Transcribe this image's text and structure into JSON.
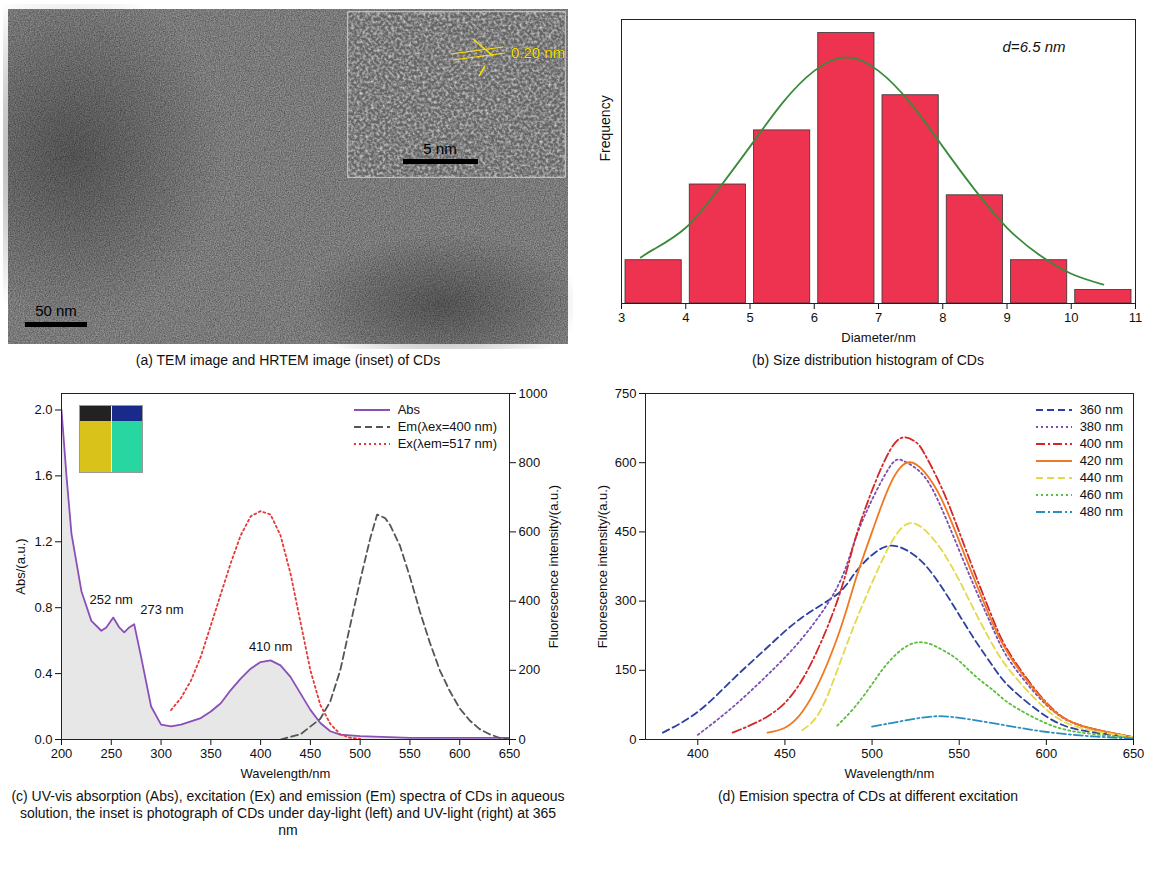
{
  "chart_data": [
    {
      "type": "image",
      "caption": "(a) TEM image and HRTEM image (inset) of CDs",
      "annotations": {
        "scale_bar": "50 nm",
        "inset_scale_bar": "5 nm",
        "lattice_spacing": "0.20 nm"
      }
    },
    {
      "type": "histogram",
      "caption": "(b) Size distribution histogram of CDs",
      "xlabel": "Diameter/nm",
      "ylabel": "Frequency",
      "bins": [
        3,
        4,
        5,
        6,
        7,
        8,
        9,
        10,
        11
      ],
      "values": [
        16,
        44,
        64,
        100,
        77,
        40,
        16,
        5
      ],
      "color": "#ee3350",
      "fit": {
        "color": "#3a8a3a",
        "x": [
          3.3,
          3.5,
          4,
          4.5,
          5,
          5.5,
          6,
          6.5,
          7,
          7.5,
          8,
          8.5,
          9,
          9.5,
          10,
          10.5
        ],
        "values": [
          17,
          20,
          28,
          42,
          58,
          74,
          86,
          91,
          86,
          74,
          58,
          42,
          28,
          18,
          11,
          7
        ]
      },
      "annotations": [
        "d=6.5 nm"
      ],
      "xlim": [
        3,
        11
      ],
      "xticks": [
        3,
        4,
        5,
        6,
        7,
        8,
        9,
        10,
        11
      ],
      "ylim": [
        0,
        105
      ],
      "tick_labels": "x"
    },
    {
      "type": "line",
      "caption": "(c) UV-vis absorption (Abs), excitation (Ex) and emission (Em) spectra of CDs in aqueous solution, the inset is photograph of CDs under day-light (left) and UV-light (right) at 365 nm",
      "xlabel": "Wavelength/nm",
      "ylabel": "Abs/(a.u.)",
      "y2label": "Fluorescence intensity/(a.u.)",
      "xlim": [
        200,
        650
      ],
      "xticks": [
        200,
        250,
        300,
        350,
        400,
        450,
        500,
        550,
        600,
        650
      ],
      "ylim": [
        0,
        2.1
      ],
      "yticks": [
        {
          "value": 0,
          "label": "0.0"
        },
        0.4,
        0.8,
        1.2,
        1.6,
        {
          "value": 2,
          "label": "2.0"
        }
      ],
      "y2lim": [
        0,
        1000
      ],
      "y2ticks": [
        0,
        200,
        400,
        600,
        800,
        1000
      ],
      "legend": "top-right",
      "series": [
        {
          "name": "Abs",
          "color": "#8a4fb8",
          "line_style": "solid",
          "axis": "y",
          "x": [
            200,
            205,
            210,
            220,
            230,
            240,
            245,
            252,
            258,
            263,
            268,
            273,
            280,
            290,
            300,
            310,
            320,
            330,
            340,
            350,
            360,
            370,
            380,
            390,
            400,
            410,
            420,
            430,
            440,
            450,
            460,
            470,
            480,
            500,
            550,
            600,
            650
          ],
          "values": [
            2.0,
            1.6,
            1.25,
            0.9,
            0.72,
            0.66,
            0.68,
            0.74,
            0.68,
            0.65,
            0.68,
            0.7,
            0.5,
            0.2,
            0.09,
            0.08,
            0.09,
            0.11,
            0.13,
            0.17,
            0.22,
            0.3,
            0.37,
            0.43,
            0.47,
            0.48,
            0.45,
            0.38,
            0.28,
            0.18,
            0.1,
            0.05,
            0.03,
            0.02,
            0.01,
            0.01,
            0.01
          ]
        },
        {
          "name": "Em(λex=400 nm)",
          "color": "#555555",
          "line_style": "dashed",
          "axis": "y2",
          "x": [
            420,
            440,
            460,
            470,
            480,
            490,
            500,
            510,
            517,
            525,
            530,
            540,
            550,
            560,
            570,
            580,
            590,
            600,
            610,
            620,
            630,
            640,
            650
          ],
          "values": [
            0,
            15,
            60,
            110,
            200,
            330,
            460,
            580,
            650,
            640,
            620,
            560,
            470,
            370,
            280,
            200,
            140,
            90,
            55,
            30,
            15,
            5,
            0
          ]
        },
        {
          "name": "Ex(λem=517 nm)",
          "color": "#e53935",
          "line_style": "dotted",
          "axis": "y2",
          "x": [
            310,
            320,
            330,
            340,
            350,
            360,
            370,
            380,
            390,
            400,
            410,
            420,
            430,
            440,
            450,
            460,
            470,
            480,
            490,
            500
          ],
          "values": [
            85,
            120,
            170,
            240,
            330,
            420,
            510,
            590,
            645,
            660,
            650,
            590,
            480,
            340,
            200,
            100,
            45,
            15,
            5,
            2
          ]
        }
      ],
      "annotations": [
        {
          "text": "252 nm",
          "x": 252,
          "y": 0.74
        },
        {
          "text": "273 nm",
          "x": 273,
          "y": 0.7
        },
        {
          "text": "410 nm",
          "x": 410,
          "y": 0.48
        }
      ]
    },
    {
      "type": "line",
      "caption": "(d) Emision spectra of CDs at different excitation",
      "xlabel": "Wavelength/nm",
      "ylabel": "Fluorescence intensity/(a.u.)",
      "xlim": [
        370,
        650
      ],
      "xticks": [
        400,
        450,
        500,
        550,
        600,
        650
      ],
      "ylim": [
        0,
        750
      ],
      "yticks": [
        0,
        150,
        300,
        450,
        600,
        750
      ],
      "legend": "top-right",
      "series": [
        {
          "name": "360 nm",
          "color": "#2e3fa0",
          "line_style": "dashed",
          "x": [
            380,
            400,
            420,
            440,
            460,
            480,
            490,
            500,
            510,
            520,
            530,
            540,
            550,
            560,
            570,
            580,
            600,
            620,
            650
          ],
          "values": [
            15,
            60,
            130,
            200,
            265,
            315,
            360,
            400,
            420,
            410,
            380,
            330,
            270,
            210,
            155,
            110,
            50,
            20,
            5
          ]
        },
        {
          "name": "380 nm",
          "color": "#7b4fb0",
          "line_style": "dotted",
          "x": [
            400,
            420,
            440,
            460,
            480,
            490,
            500,
            510,
            515,
            520,
            530,
            540,
            550,
            560,
            570,
            580,
            600,
            620,
            650
          ],
          "values": [
            10,
            70,
            140,
            220,
            330,
            430,
            520,
            590,
            607,
            600,
            570,
            500,
            410,
            320,
            235,
            165,
            75,
            30,
            5
          ]
        },
        {
          "name": "400 nm",
          "color": "#d62728",
          "line_style": "dashdot",
          "x": [
            420,
            440,
            460,
            480,
            490,
            500,
            510,
            518,
            525,
            530,
            540,
            550,
            560,
            570,
            580,
            600,
            620,
            650
          ],
          "values": [
            15,
            50,
            130,
            300,
            430,
            540,
            625,
            655,
            645,
            620,
            545,
            450,
            350,
            255,
            180,
            80,
            30,
            5
          ]
        },
        {
          "name": "420 nm",
          "color": "#f07820",
          "line_style": "solid",
          "x": [
            440,
            460,
            480,
            490,
            500,
            510,
            520,
            530,
            540,
            550,
            560,
            570,
            580,
            600,
            620,
            650
          ],
          "values": [
            15,
            60,
            220,
            340,
            450,
            550,
            600,
            580,
            520,
            430,
            335,
            245,
            175,
            78,
            30,
            5
          ]
        },
        {
          "name": "440 nm",
          "color": "#e3d94a",
          "line_style": "dashed",
          "x": [
            460,
            470,
            480,
            490,
            500,
            510,
            520,
            530,
            540,
            550,
            560,
            570,
            580,
            600,
            620,
            650
          ],
          "values": [
            20,
            60,
            150,
            250,
            340,
            420,
            467,
            455,
            410,
            345,
            270,
            200,
            145,
            65,
            25,
            5
          ]
        },
        {
          "name": "460 nm",
          "color": "#5bbf3a",
          "line_style": "dotted",
          "x": [
            480,
            490,
            500,
            510,
            525,
            540,
            550,
            560,
            570,
            580,
            600,
            620,
            650
          ],
          "values": [
            30,
            70,
            120,
            170,
            210,
            195,
            170,
            135,
            105,
            75,
            35,
            15,
            3
          ]
        },
        {
          "name": "480 nm",
          "color": "#2a8fc0",
          "line_style": "dashdot",
          "x": [
            500,
            510,
            520,
            535,
            550,
            570,
            590,
            610,
            630,
            650
          ],
          "values": [
            28,
            35,
            42,
            50,
            47,
            35,
            22,
            12,
            6,
            2
          ]
        }
      ]
    }
  ]
}
